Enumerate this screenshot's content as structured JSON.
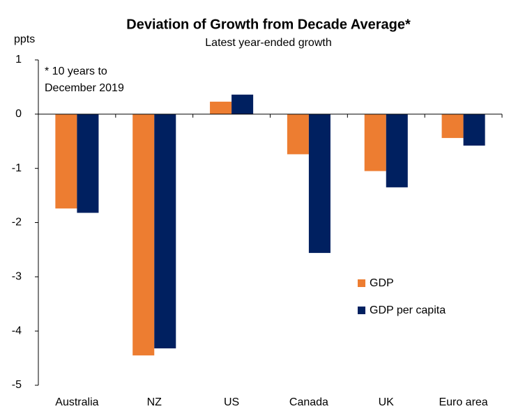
{
  "chart_data": {
    "type": "bar",
    "title": "Deviation of Growth from Decade Average*",
    "subtitle": "Latest year-ended growth",
    "y_label": "ppts",
    "annotation": [
      "* 10 years to",
      "December 2019"
    ],
    "categories": [
      "Australia",
      "NZ",
      "US",
      "Canada",
      "UK",
      "Euro area"
    ],
    "series": [
      {
        "name": "GDP",
        "color": "#ed7d31",
        "values": [
          -1.74,
          -4.45,
          0.23,
          -0.74,
          -1.05,
          -0.44
        ]
      },
      {
        "name": "GDP per capita",
        "color": "#002060",
        "values": [
          -1.82,
          -4.32,
          0.36,
          -2.56,
          -1.35,
          -0.58
        ]
      }
    ],
    "ylim": [
      -5,
      1
    ],
    "yticks": [
      -5,
      -4,
      -3,
      -2,
      -1,
      0,
      1
    ],
    "grid": false
  }
}
